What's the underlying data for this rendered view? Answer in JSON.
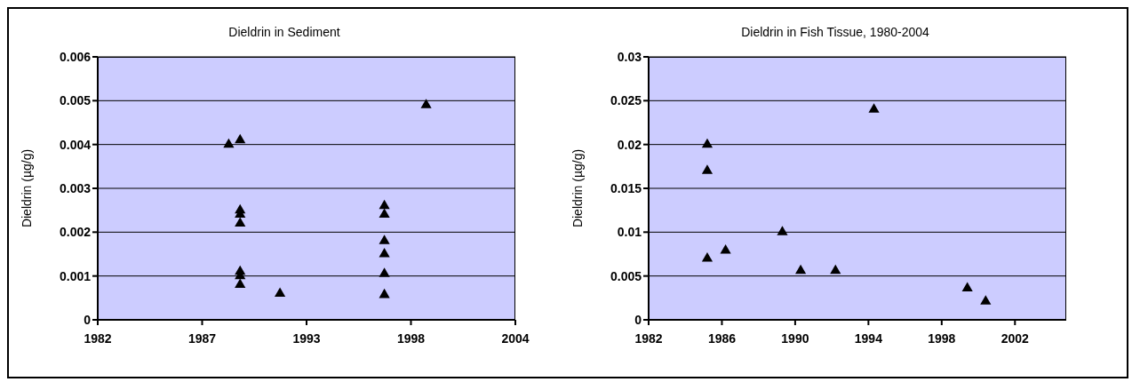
{
  "chart_data": [
    {
      "type": "scatter",
      "title": "Dieldrin in Sediment",
      "ylabel": "Dieldrin (µg/g)",
      "marker": "triangle",
      "grid": "y",
      "x": [
        1988.9,
        1989.5,
        1989.5,
        1989.5,
        1989.5,
        1989.5,
        1989.5,
        1989.5,
        1991.6,
        1997.1,
        1997.1,
        1997.1,
        1997.1,
        1997.1,
        1997.1,
        1999.3
      ],
      "series": [
        {
          "color": "#000000",
          "values": [
            0.004,
            0.0041,
            0.0025,
            0.0024,
            0.0022,
            0.0011,
            0.001,
            0.0008,
            0.0006,
            0.0026,
            0.0024,
            0.0018,
            0.0015,
            0.00105,
            0.00057,
            0.0049
          ]
        }
      ],
      "xlim": [
        1982,
        2004
      ],
      "xticks": [
        1982,
        {
          "value": 1987.5,
          "label": "1987"
        },
        1993,
        {
          "value": 1998.5,
          "label": "1998"
        },
        2004
      ],
      "ylim": [
        0,
        0.006
      ],
      "yticks": [
        0,
        0.001,
        0.002,
        0.003,
        0.004,
        0.005,
        0.006
      ]
    },
    {
      "type": "scatter",
      "title": "Dieldrin in Fish Tissue, 1980-2004",
      "ylabel": "Dieldrin (µg/g)",
      "marker": "triangle",
      "grid": "y",
      "x": [
        1985.2,
        1985.2,
        1985.2,
        1986.2,
        1989.3,
        1990.3,
        1992.2,
        1994.3,
        1999.4,
        2000.4
      ],
      "series": [
        {
          "color": "#000000",
          "values": [
            0.02,
            0.017,
            0.007,
            0.0079,
            0.01,
            0.0056,
            0.0056,
            0.024,
            0.0036,
            0.0021
          ]
        }
      ],
      "xlim": [
        1982,
        2004.8
      ],
      "xticks": [
        1982,
        1986,
        1990,
        1994,
        1998,
        2002
      ],
      "ylim": [
        0,
        0.03
      ],
      "yticks": [
        0,
        0.005,
        0.01,
        0.015,
        0.02,
        0.025,
        0.03
      ]
    }
  ]
}
